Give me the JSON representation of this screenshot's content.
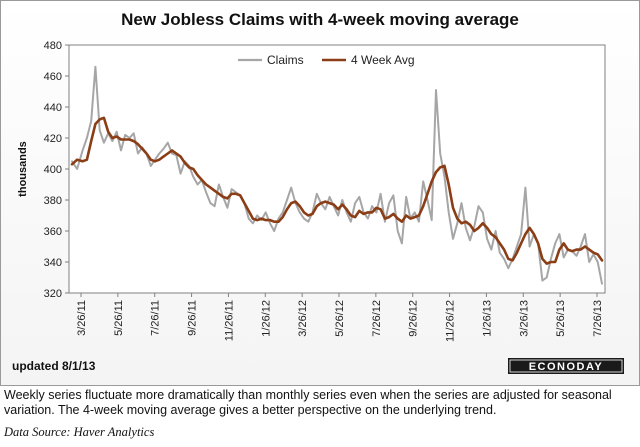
{
  "chart_data": {
    "type": "line",
    "title": "New Jobless Claims with 4-week moving average",
    "ylabel": "thousands",
    "xlabel": "",
    "ylim": [
      320,
      480
    ],
    "yticks": [
      320,
      340,
      360,
      380,
      400,
      420,
      440,
      460,
      480
    ],
    "legend_position": "top-center",
    "grid": false,
    "x_tick_labels": [
      "3/26/11",
      "5/26/11",
      "7/26/11",
      "9/26/11",
      "11/26/11",
      "1/26/12",
      "3/26/12",
      "5/26/12",
      "7/26/12",
      "9/26/12",
      "11/26/12",
      "1/26/13",
      "3/26/13",
      "5/26/13",
      "7/26/13"
    ],
    "series": [
      {
        "name": "Claims",
        "color": "#a6a6a6",
        "values": [
          [
            0.0,
            405
          ],
          [
            1.2,
            400
          ],
          [
            2.5,
            412
          ],
          [
            3.5,
            420
          ],
          [
            4.5,
            431
          ],
          [
            5.5,
            466
          ],
          [
            6.5,
            425
          ],
          [
            7.5,
            417
          ],
          [
            8.5,
            423
          ],
          [
            9.5,
            418
          ],
          [
            10.5,
            424
          ],
          [
            11.5,
            412
          ],
          [
            12.5,
            422
          ],
          [
            13.5,
            420
          ],
          [
            14.5,
            423
          ],
          [
            15.5,
            410
          ],
          [
            16.5,
            414
          ],
          [
            17.5,
            410
          ],
          [
            18.5,
            402
          ],
          [
            19.5,
            406
          ],
          [
            20.5,
            410
          ],
          [
            21.5,
            413
          ],
          [
            22.5,
            417
          ],
          [
            23.5,
            410
          ],
          [
            24.5,
            409
          ],
          [
            25.5,
            397
          ],
          [
            26.5,
            405
          ],
          [
            27.5,
            402
          ],
          [
            28.5,
            395
          ],
          [
            29.5,
            390
          ],
          [
            30.5,
            393
          ],
          [
            31.5,
            385
          ],
          [
            32.5,
            378
          ],
          [
            33.5,
            376
          ],
          [
            34.5,
            390
          ],
          [
            35.5,
            382
          ],
          [
            36.5,
            375
          ],
          [
            37.5,
            387
          ],
          [
            38.5,
            385
          ],
          [
            39.5,
            383
          ],
          [
            40.5,
            378
          ],
          [
            41.5,
            368
          ],
          [
            42.5,
            365
          ],
          [
            43.5,
            370
          ],
          [
            44.5,
            367
          ],
          [
            45.5,
            372
          ],
          [
            46.5,
            365
          ],
          [
            47.5,
            360
          ],
          [
            48.5,
            368
          ],
          [
            49.5,
            372
          ],
          [
            50.5,
            380
          ],
          [
            51.5,
            388
          ],
          [
            52.5,
            378
          ],
          [
            53.5,
            372
          ],
          [
            54.5,
            368
          ],
          [
            55.5,
            366
          ],
          [
            56.5,
            372
          ],
          [
            57.5,
            384
          ],
          [
            58.5,
            378
          ],
          [
            59.5,
            374
          ],
          [
            60.5,
            382
          ],
          [
            61.5,
            376
          ],
          [
            62.5,
            370
          ],
          [
            63.5,
            380
          ],
          [
            64.5,
            372
          ],
          [
            65.5,
            366
          ],
          [
            66.5,
            378
          ],
          [
            67.5,
            382
          ],
          [
            68.5,
            372
          ],
          [
            69.5,
            368
          ],
          [
            70.5,
            376
          ],
          [
            71.5,
            372
          ],
          [
            72.5,
            384
          ],
          [
            73.5,
            366
          ],
          [
            74.5,
            378
          ],
          [
            75.5,
            383
          ],
          [
            76.5,
            360
          ],
          [
            77.5,
            352
          ],
          [
            78.5,
            382
          ],
          [
            79.5,
            368
          ],
          [
            80.5,
            372
          ],
          [
            81.5,
            366
          ],
          [
            82.5,
            392
          ],
          [
            83.5,
            380
          ],
          [
            84.5,
            367
          ],
          [
            85.5,
            451
          ],
          [
            86.5,
            410
          ],
          [
            87.5,
            395
          ],
          [
            88.5,
            372
          ],
          [
            89.5,
            355
          ],
          [
            90.5,
            365
          ],
          [
            91.5,
            378
          ],
          [
            92.5,
            362
          ],
          [
            93.5,
            354
          ],
          [
            94.5,
            363
          ],
          [
            95.5,
            376
          ],
          [
            96.5,
            372
          ],
          [
            97.5,
            355
          ],
          [
            98.5,
            348
          ],
          [
            99.5,
            360
          ],
          [
            100.5,
            346
          ],
          [
            101.5,
            342
          ],
          [
            102.5,
            336
          ],
          [
            103.5,
            342
          ],
          [
            104.5,
            350
          ],
          [
            105.5,
            358
          ],
          [
            106.5,
            388
          ],
          [
            107.5,
            350
          ],
          [
            108.5,
            358
          ],
          [
            109.5,
            352
          ],
          [
            110.5,
            328
          ],
          [
            111.5,
            330
          ],
          [
            112.5,
            342
          ],
          [
            113.5,
            352
          ],
          [
            114.5,
            358
          ],
          [
            115.5,
            343
          ],
          [
            116.5,
            348
          ],
          [
            117.5,
            347
          ],
          [
            118.5,
            344
          ],
          [
            119.5,
            350
          ],
          [
            120.5,
            358
          ],
          [
            121.5,
            340
          ],
          [
            122.5,
            345
          ],
          [
            123.5,
            340
          ],
          [
            124.5,
            326
          ]
        ]
      },
      {
        "name": "4 Week Avg",
        "color": "#8b3d16",
        "values": [
          [
            0.0,
            403
          ],
          [
            1.2,
            406
          ],
          [
            2.5,
            405
          ],
          [
            3.5,
            406
          ],
          [
            4.5,
            418
          ],
          [
            5.5,
            429
          ],
          [
            6.5,
            432
          ],
          [
            7.5,
            433
          ],
          [
            8.5,
            424
          ],
          [
            9.5,
            420
          ],
          [
            10.5,
            421
          ],
          [
            11.5,
            419
          ],
          [
            12.5,
            419
          ],
          [
            13.5,
            419
          ],
          [
            14.5,
            418
          ],
          [
            15.5,
            416
          ],
          [
            16.5,
            413
          ],
          [
            17.5,
            410
          ],
          [
            18.5,
            406
          ],
          [
            19.5,
            405
          ],
          [
            20.5,
            406
          ],
          [
            21.5,
            408
          ],
          [
            22.5,
            410
          ],
          [
            23.5,
            412
          ],
          [
            24.5,
            410
          ],
          [
            25.5,
            408
          ],
          [
            26.5,
            404
          ],
          [
            27.5,
            401
          ],
          [
            28.5,
            400
          ],
          [
            29.5,
            396
          ],
          [
            30.5,
            393
          ],
          [
            31.5,
            390
          ],
          [
            32.5,
            388
          ],
          [
            33.5,
            386
          ],
          [
            34.5,
            384
          ],
          [
            35.5,
            382
          ],
          [
            36.5,
            381
          ],
          [
            37.5,
            384
          ],
          [
            38.5,
            384
          ],
          [
            39.5,
            383
          ],
          [
            40.5,
            378
          ],
          [
            41.5,
            373
          ],
          [
            42.5,
            368
          ],
          [
            43.5,
            367
          ],
          [
            44.5,
            368
          ],
          [
            45.5,
            367
          ],
          [
            46.5,
            367
          ],
          [
            47.5,
            366
          ],
          [
            48.5,
            366
          ],
          [
            49.5,
            369
          ],
          [
            50.5,
            374
          ],
          [
            51.5,
            378
          ],
          [
            52.5,
            379
          ],
          [
            53.5,
            376
          ],
          [
            54.5,
            372
          ],
          [
            55.5,
            370
          ],
          [
            56.5,
            371
          ],
          [
            57.5,
            376
          ],
          [
            58.5,
            378
          ],
          [
            59.5,
            379
          ],
          [
            60.5,
            378
          ],
          [
            61.5,
            377
          ],
          [
            62.5,
            374
          ],
          [
            63.5,
            377
          ],
          [
            64.5,
            374
          ],
          [
            65.5,
            370
          ],
          [
            66.5,
            369
          ],
          [
            67.5,
            373
          ],
          [
            68.5,
            371
          ],
          [
            69.5,
            372
          ],
          [
            70.5,
            372
          ],
          [
            71.5,
            375
          ],
          [
            72.5,
            374
          ],
          [
            73.5,
            368
          ],
          [
            74.5,
            369
          ],
          [
            75.5,
            371
          ],
          [
            76.5,
            368
          ],
          [
            77.5,
            366
          ],
          [
            78.5,
            370
          ],
          [
            79.5,
            368
          ],
          [
            80.5,
            369
          ],
          [
            81.5,
            370
          ],
          [
            82.5,
            376
          ],
          [
            83.5,
            384
          ],
          [
            84.5,
            392
          ],
          [
            85.5,
            398
          ],
          [
            86.5,
            401
          ],
          [
            87.5,
            402
          ],
          [
            88.5,
            390
          ],
          [
            89.5,
            375
          ],
          [
            90.5,
            368
          ],
          [
            91.5,
            365
          ],
          [
            92.5,
            366
          ],
          [
            93.5,
            364
          ],
          [
            94.5,
            360
          ],
          [
            95.5,
            362
          ],
          [
            96.5,
            365
          ],
          [
            97.5,
            362
          ],
          [
            98.5,
            358
          ],
          [
            99.5,
            356
          ],
          [
            100.5,
            352
          ],
          [
            101.5,
            348
          ],
          [
            102.5,
            342
          ],
          [
            103.5,
            341
          ],
          [
            104.5,
            346
          ],
          [
            105.5,
            352
          ],
          [
            106.5,
            358
          ],
          [
            107.5,
            362
          ],
          [
            108.5,
            358
          ],
          [
            109.5,
            352
          ],
          [
            110.5,
            342
          ],
          [
            111.5,
            339
          ],
          [
            112.5,
            340
          ],
          [
            113.5,
            340
          ],
          [
            114.5,
            348
          ],
          [
            115.5,
            352
          ],
          [
            116.5,
            348
          ],
          [
            117.5,
            347
          ],
          [
            118.5,
            348
          ],
          [
            119.5,
            348
          ],
          [
            120.5,
            350
          ],
          [
            121.5,
            348
          ],
          [
            122.5,
            346
          ],
          [
            123.5,
            345
          ],
          [
            124.5,
            341
          ]
        ]
      }
    ],
    "x_domain": [
      0,
      124.5
    ]
  },
  "footer": {
    "updated": "updated 8/1/13",
    "logo_text": "ECONODAY"
  },
  "caption": {
    "text": "Weekly series fluctuate more dramatically than monthly series even when the series are adjusted for seasonal variation. The 4-week moving average gives a better perspective on the underlying trend.",
    "source": "Data Source: Haver Analytics"
  }
}
